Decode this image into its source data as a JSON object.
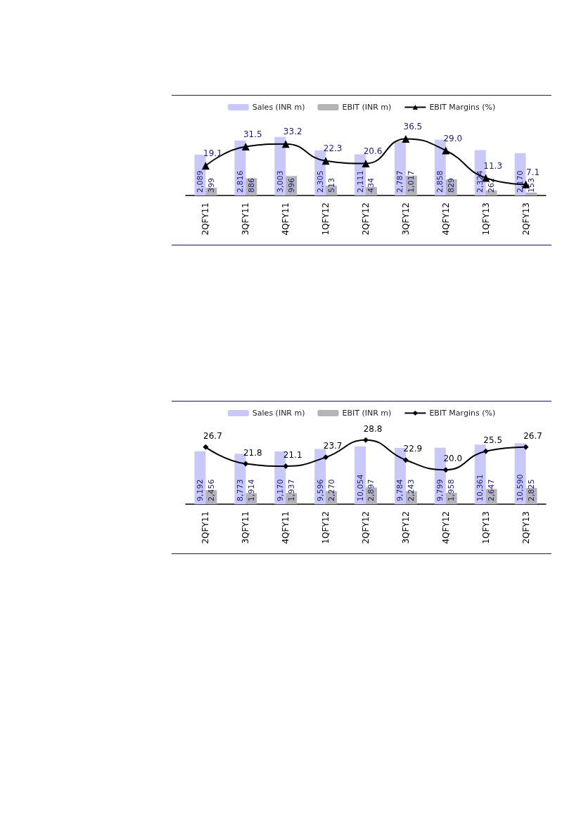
{
  "chart_data": [
    {
      "type": "bar",
      "categories": [
        "2QFY11",
        "3QFY11",
        "4QFY11",
        "1QFY12",
        "2QFY12",
        "3QFY12",
        "4QFY12",
        "1QFY13",
        "2QFY13"
      ],
      "legend": "top",
      "marker": "triangle",
      "series": [
        {
          "name": "Sales (INR m)",
          "color": "#c8c8fa",
          "values": [
            2089,
            2816,
            3003,
            2305,
            2111,
            2787,
            2858,
            2324,
            2170
          ],
          "value_labels": [
            "2,089",
            "2,816",
            "3,003",
            "2,305",
            "2,111",
            "2,787",
            "2,858",
            "2,324",
            "2,170"
          ]
        },
        {
          "name": "EBIT (INR m)",
          "color": "#b4b4b4",
          "values": [
            399,
            886,
            996,
            513,
            434,
            1017,
            829,
            262,
            153
          ],
          "value_labels": [
            "399",
            "886",
            "996",
            "513",
            "434",
            "1,017",
            "829",
            "262",
            "153"
          ]
        },
        {
          "name": "EBIT Margins (%)",
          "type": "line",
          "axis": "y2",
          "color": "#000000",
          "values": [
            19.1,
            31.5,
            33.2,
            22.3,
            20.6,
            36.5,
            29.0,
            11.3,
            7.1
          ],
          "value_labels": [
            "19.1",
            "31.5",
            "33.2",
            "22.3",
            "20.6",
            "36.5",
            "29.0",
            "11.3",
            "7.1"
          ]
        }
      ]
    },
    {
      "type": "bar",
      "categories": [
        "2QFY11",
        "3QFY11",
        "4QFY11",
        "1QFY12",
        "2QFY12",
        "3QFY12",
        "4QFY12",
        "1QFY13",
        "2QFY13"
      ],
      "legend": "top",
      "marker": "diamond",
      "series": [
        {
          "name": "Sales (INR m)",
          "color": "#c8c8fa",
          "values": [
            9192,
            8773,
            9170,
            9596,
            10054,
            9784,
            9799,
            10361,
            10590
          ],
          "value_labels": [
            "9,192",
            "8,773",
            "9,170",
            "9,596",
            "10,054",
            "9,784",
            "9,799",
            "10,361",
            "10,590"
          ]
        },
        {
          "name": "EBIT (INR m)",
          "color": "#b4b4b4",
          "values": [
            2456,
            1914,
            1937,
            2270,
            2897,
            2243,
            1958,
            2647,
            2825
          ],
          "value_labels": [
            "2,456",
            "1,914",
            "1,937",
            "2,270",
            "2,897",
            "2,243",
            "1,958",
            "2,647",
            "2,825"
          ]
        },
        {
          "name": "EBIT Margins (%)",
          "type": "line",
          "axis": "y2",
          "color": "#000000",
          "values": [
            26.7,
            21.8,
            21.1,
            23.7,
            28.8,
            22.9,
            20.0,
            25.5,
            26.7
          ],
          "value_labels": [
            "26.7",
            "21.8",
            "21.1",
            "23.7",
            "28.8",
            "22.9",
            "20.0",
            "25.5",
            "26.7"
          ]
        }
      ]
    }
  ]
}
